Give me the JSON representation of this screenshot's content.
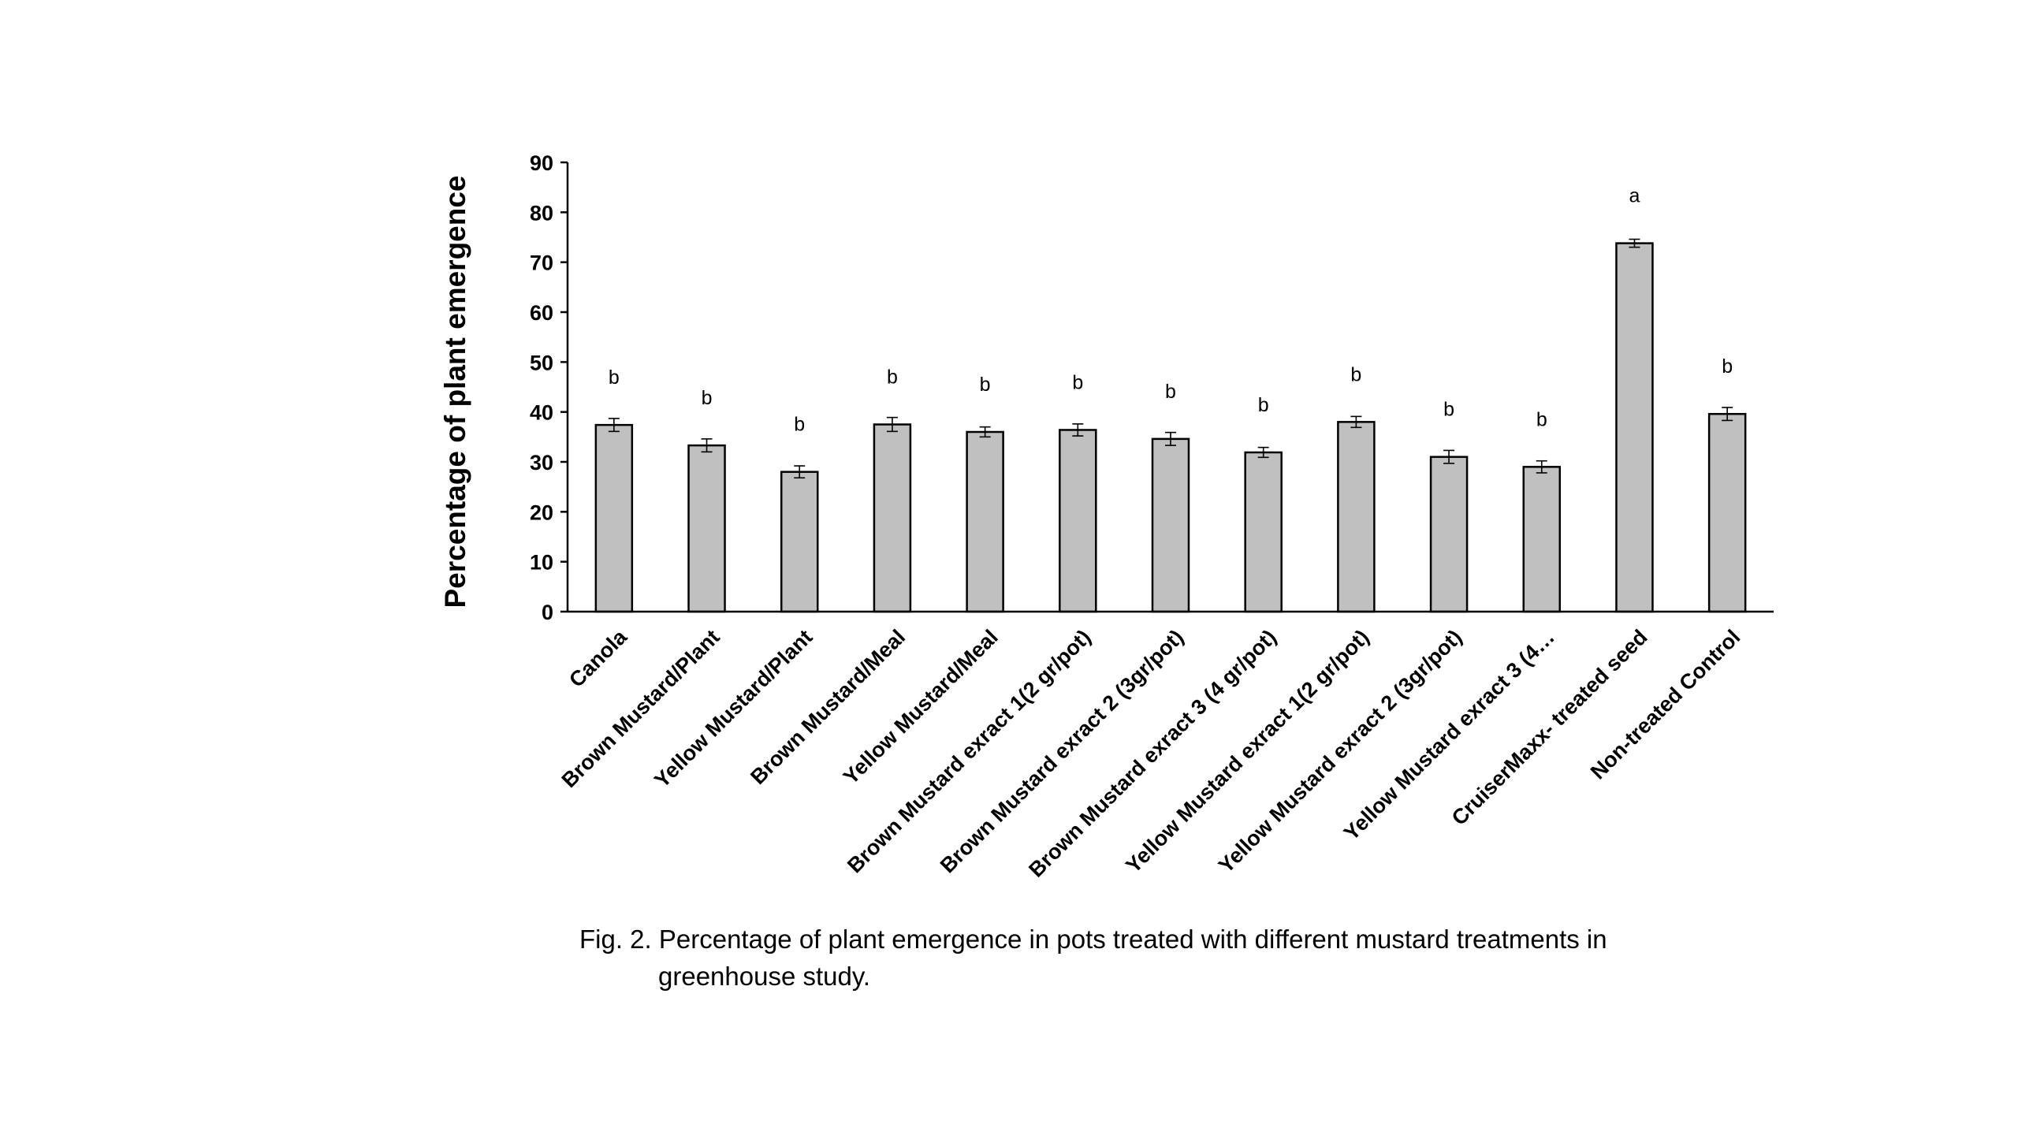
{
  "chart_data": {
    "type": "bar",
    "title": "",
    "xlabel": "",
    "ylabel": "Percentage of plant emergence",
    "ylim": [
      0,
      90
    ],
    "yticks": [
      0,
      10,
      20,
      30,
      40,
      50,
      60,
      70,
      80,
      90
    ],
    "grid": false,
    "legend": "none",
    "bar_color": "#c0c0c0",
    "categories": [
      "Canola",
      "Brown Mustard/Plant",
      "Yellow Mustard/Plant",
      "Brown Mustard/Meal",
      "Yellow Mustard/Meal",
      "Brown Mustard exract 1(2 gr/pot)",
      "Brown Mustard exract 2 (3gr/pot)",
      "Brown Mustard exract 3 (4 gr/pot)",
      "Yellow Mustard exract 1(2 gr/pot)",
      "Yellow Mustard exract 2 (3gr/pot)",
      "Yellow Mustard exract 3 (4…",
      "CruiserMaxx- treated seed",
      "Non-treated Control"
    ],
    "values": [
      37.4,
      33.3,
      28.0,
      37.5,
      36.0,
      36.4,
      34.6,
      31.9,
      38.0,
      31.0,
      29.0,
      73.8,
      39.6
    ],
    "error": [
      1.3,
      1.3,
      1.2,
      1.4,
      1.0,
      1.2,
      1.3,
      1.0,
      1.1,
      1.3,
      1.2,
      0.8,
      1.3
    ],
    "significance": [
      "b",
      "b",
      "b",
      "b",
      "b",
      "b",
      "b",
      "b",
      "b",
      "b",
      "b",
      "a",
      "b"
    ]
  },
  "caption": {
    "line1": "Fig. 2. Percentage of plant emergence in pots treated with different mustard treatments in",
    "line2": "greenhouse study."
  }
}
